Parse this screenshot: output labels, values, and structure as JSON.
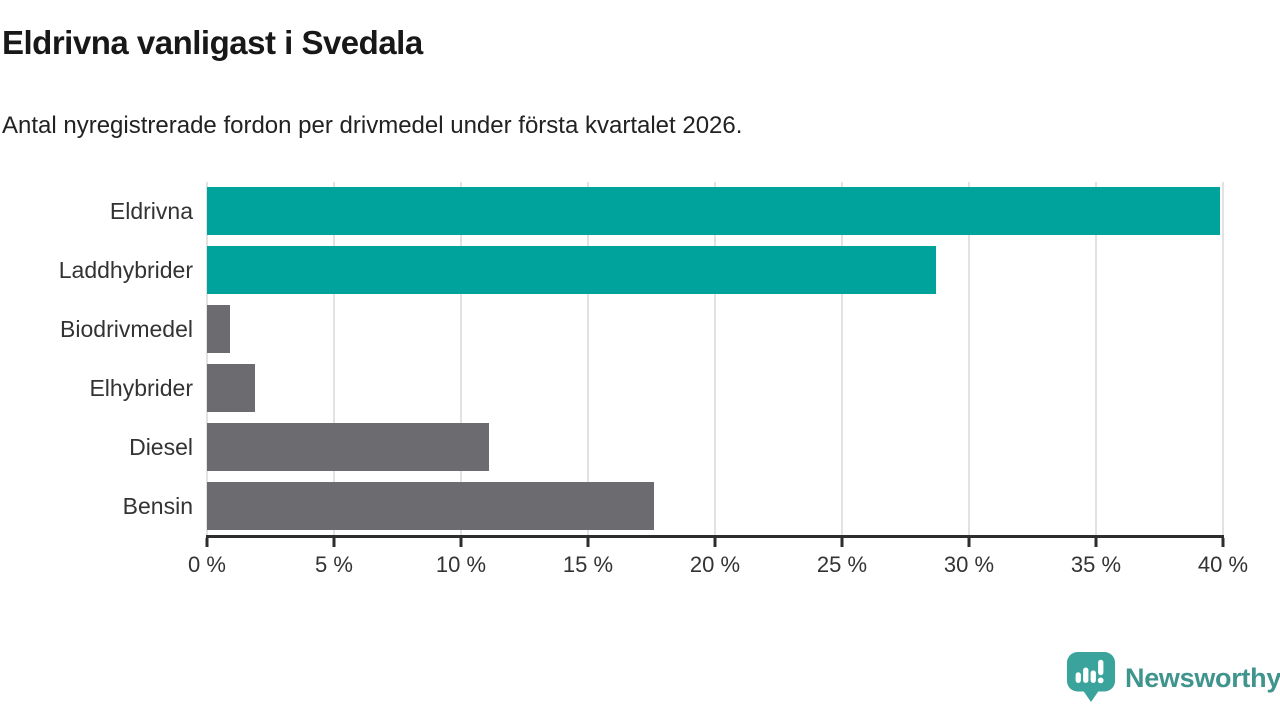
{
  "header": {
    "title": "Eldrivna vanligast i Svedala",
    "subtitle": "Antal nyregistrerade fordon per drivmedel under första kvartalet 2026."
  },
  "chart_data": {
    "type": "bar",
    "orientation": "horizontal",
    "title": "Eldrivna vanligast i Svedala",
    "subtitle": "Antal nyregistrerade fordon per drivmedel under första kvartalet 2026.",
    "categories": [
      "Eldrivna",
      "Laddhybrider",
      "Biodrivmedel",
      "Elhybrider",
      "Diesel",
      "Bensin"
    ],
    "values": [
      39.9,
      28.7,
      0.9,
      1.9,
      11.1,
      17.6
    ],
    "unit": "%",
    "xlabel": "",
    "ylabel": "",
    "xlim": [
      0,
      40
    ],
    "xticks": [
      0,
      5,
      10,
      15,
      20,
      25,
      30,
      35,
      40
    ],
    "xtick_labels": [
      "0 %",
      "5 %",
      "10 %",
      "15 %",
      "20 %",
      "25 %",
      "30 %",
      "35 %",
      "40 %"
    ],
    "grid": "vertical-only",
    "legend": "none",
    "bar_colors": [
      "#00a39c",
      "#00a39c",
      "#6b6b70",
      "#6b6b70",
      "#6b6b70",
      "#6b6b70"
    ]
  },
  "colors": {
    "highlight_teal": "#00a39c",
    "neutral_gray": "#6b6b70",
    "gridline": "#e2e2e2",
    "axis": "#2d2d2d",
    "title_text": "#181818",
    "label_text": "#333333",
    "brand_teal": "#3aa49c",
    "brand_text_teal": "#3f948e"
  },
  "branding": {
    "logo_text": "Newsworthy"
  }
}
